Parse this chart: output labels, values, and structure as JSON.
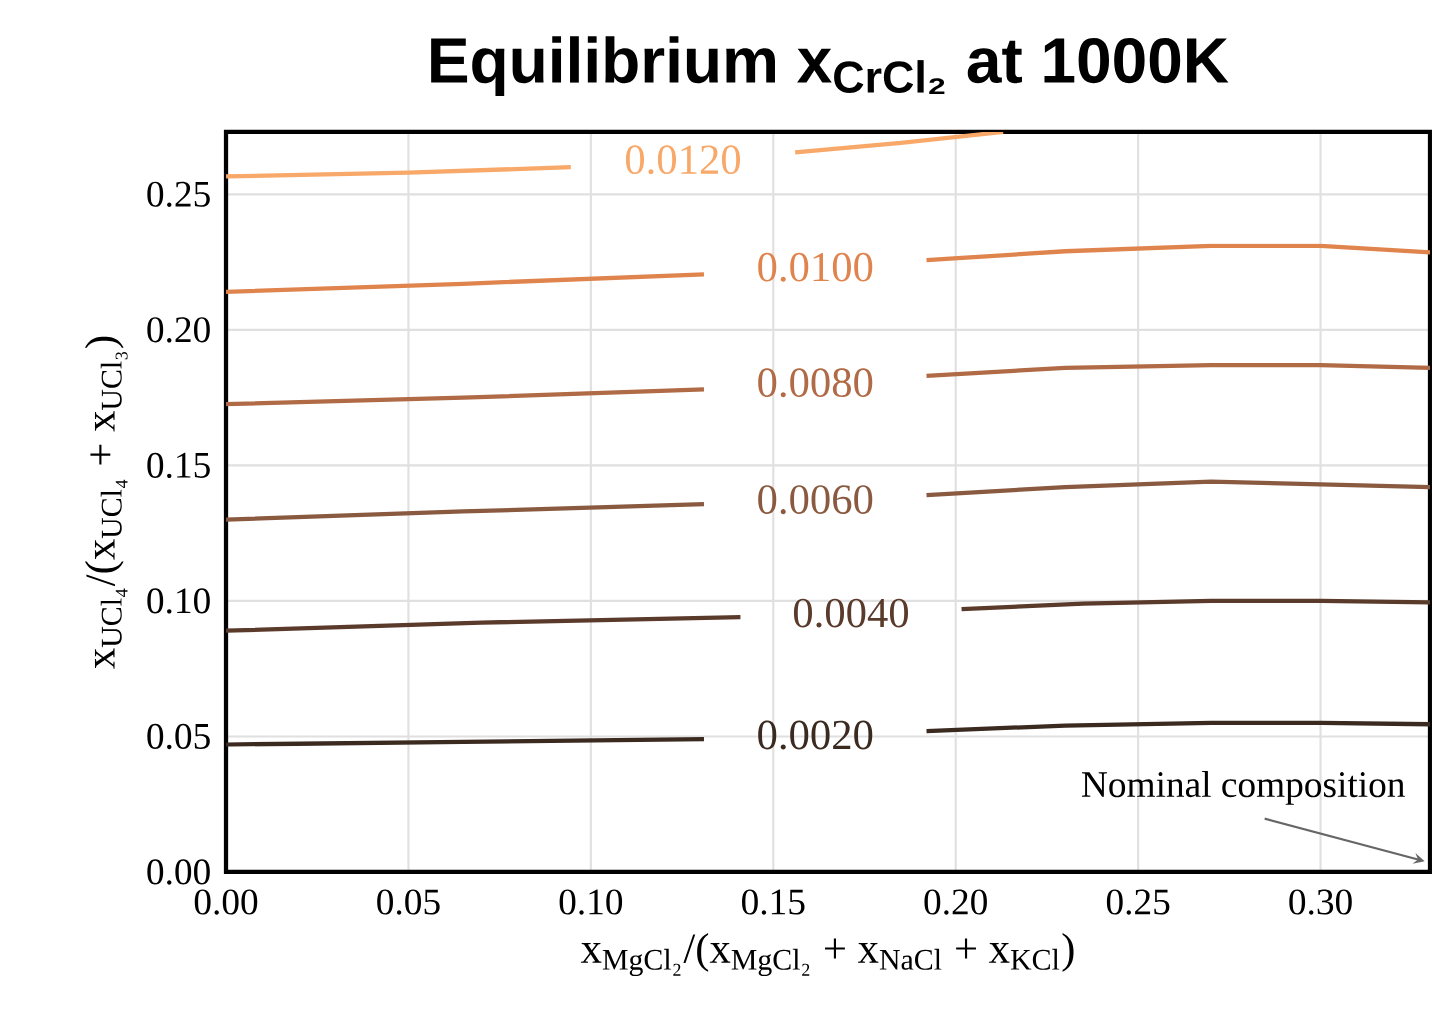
{
  "chart_data": {
    "type": "line",
    "title": "Equilibrium x$_{CrCl₂}$ at 1000K",
    "xlabel": "x$_{MgCl₂}$/(x$_{MgCl₂}$ + x$_{NaCl}$ + x$_{KCl}$)",
    "ylabel": "x$_{UCl₄}$/(x$_{UCl₄}$ + x$_{UCl₃}$)",
    "xlim": [
      0,
      0.33
    ],
    "ylim": [
      0,
      0.273
    ],
    "xticks": [
      {
        "value": 0,
        "label": "0.00"
      },
      {
        "value": 0.05,
        "label": "0.05"
      },
      {
        "value": 0.1,
        "label": "0.10"
      },
      {
        "value": 0.15,
        "label": "0.15"
      },
      {
        "value": 0.2,
        "label": "0.20"
      },
      {
        "value": 0.25,
        "label": "0.25"
      },
      {
        "value": 0.3,
        "label": "0.30"
      }
    ],
    "yticks": [
      {
        "value": 0,
        "label": "0.00"
      },
      {
        "value": 0.05,
        "label": "0.05"
      },
      {
        "value": 0.1,
        "label": "0.10"
      },
      {
        "value": 0.15,
        "label": "0.15"
      },
      {
        "value": 0.2,
        "label": "0.20"
      },
      {
        "value": 0.25,
        "label": "0.25"
      }
    ],
    "grid": true,
    "series": [
      {
        "name": "0.0020",
        "color": "#3a2a20",
        "x": [
          0,
          0.065,
          0.131,
          0.16,
          0.192,
          0.23,
          0.27,
          0.3,
          0.33
        ],
        "values": [
          0.047,
          0.048,
          0.049,
          null,
          0.052,
          0.054,
          0.055,
          0.055,
          0.0545
        ]
      },
      {
        "name": "0.0040",
        "color": "#5a3a2a",
        "x": [
          0,
          0.07,
          0.141,
          0.17,
          0.2016,
          0.235,
          0.27,
          0.3,
          0.33
        ],
        "values": [
          0.089,
          0.092,
          0.094,
          null,
          0.097,
          0.099,
          0.1,
          0.1,
          0.0995
        ]
      },
      {
        "name": "0.0060",
        "color": "#8a5a40",
        "x": [
          0,
          0.065,
          0.131,
          0.16,
          0.192,
          0.23,
          0.27,
          0.3,
          0.33
        ],
        "values": [
          0.13,
          0.133,
          0.1357,
          null,
          0.139,
          0.142,
          0.144,
          0.143,
          0.142
        ]
      },
      {
        "name": "0.0080",
        "color": "#b06a45",
        "x": [
          0,
          0.065,
          0.131,
          0.16,
          0.192,
          0.23,
          0.27,
          0.3,
          0.33
        ],
        "values": [
          0.1726,
          0.175,
          0.178,
          null,
          0.183,
          0.186,
          0.187,
          0.187,
          0.186
        ]
      },
      {
        "name": "0.0100",
        "color": "#e0844e",
        "x": [
          0,
          0.065,
          0.131,
          0.16,
          0.192,
          0.23,
          0.27,
          0.3,
          0.33
        ],
        "values": [
          0.214,
          0.217,
          0.2205,
          null,
          0.2257,
          0.229,
          0.231,
          0.231,
          0.2286
        ]
      },
      {
        "name": "0.0120",
        "color": "#f8a868",
        "x": [
          0,
          0.05,
          0.0945,
          0.125,
          0.156,
          0.185,
          0.213
        ],
        "values": [
          0.2566,
          0.258,
          0.26,
          null,
          0.2655,
          0.269,
          0.273
        ]
      }
    ],
    "annotations": [
      "Nominal composition"
    ]
  }
}
